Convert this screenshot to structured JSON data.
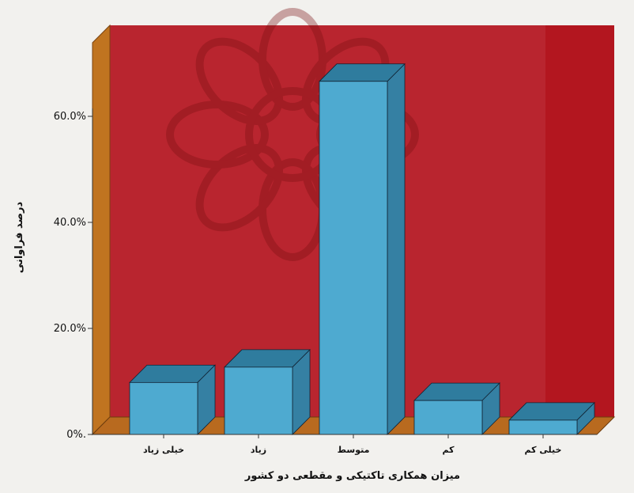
{
  "chart_data": {
    "type": "bar",
    "categories": [
      "خیلی زیاد",
      "زیاد",
      "متوسط",
      "کم",
      "خیلی کم"
    ],
    "values": [
      9.8,
      12.7,
      66.6,
      6.4,
      2.7
    ],
    "yticks": [
      "0%.",
      "20.0%",
      "40.0%",
      "60.0%"
    ],
    "ylim": [
      0,
      70
    ],
    "xlabel": "میزان همکاری تاکتیکی و مقطعی دو کشور",
    "ylabel": "درصد فراوانی",
    "title": "",
    "grid": false,
    "legend": "none",
    "three_d": true,
    "colors": {
      "background": "#f2f1ee",
      "back_wall": "#b9252f",
      "right_band": "#b3161f",
      "floor": "#b86a1f",
      "side_wall": "#c07420",
      "bar_front": "#4eaad0",
      "bar_top": "#2f7c9e",
      "bar_side": "#3580a3",
      "watermark": "#7a0f12"
    }
  }
}
